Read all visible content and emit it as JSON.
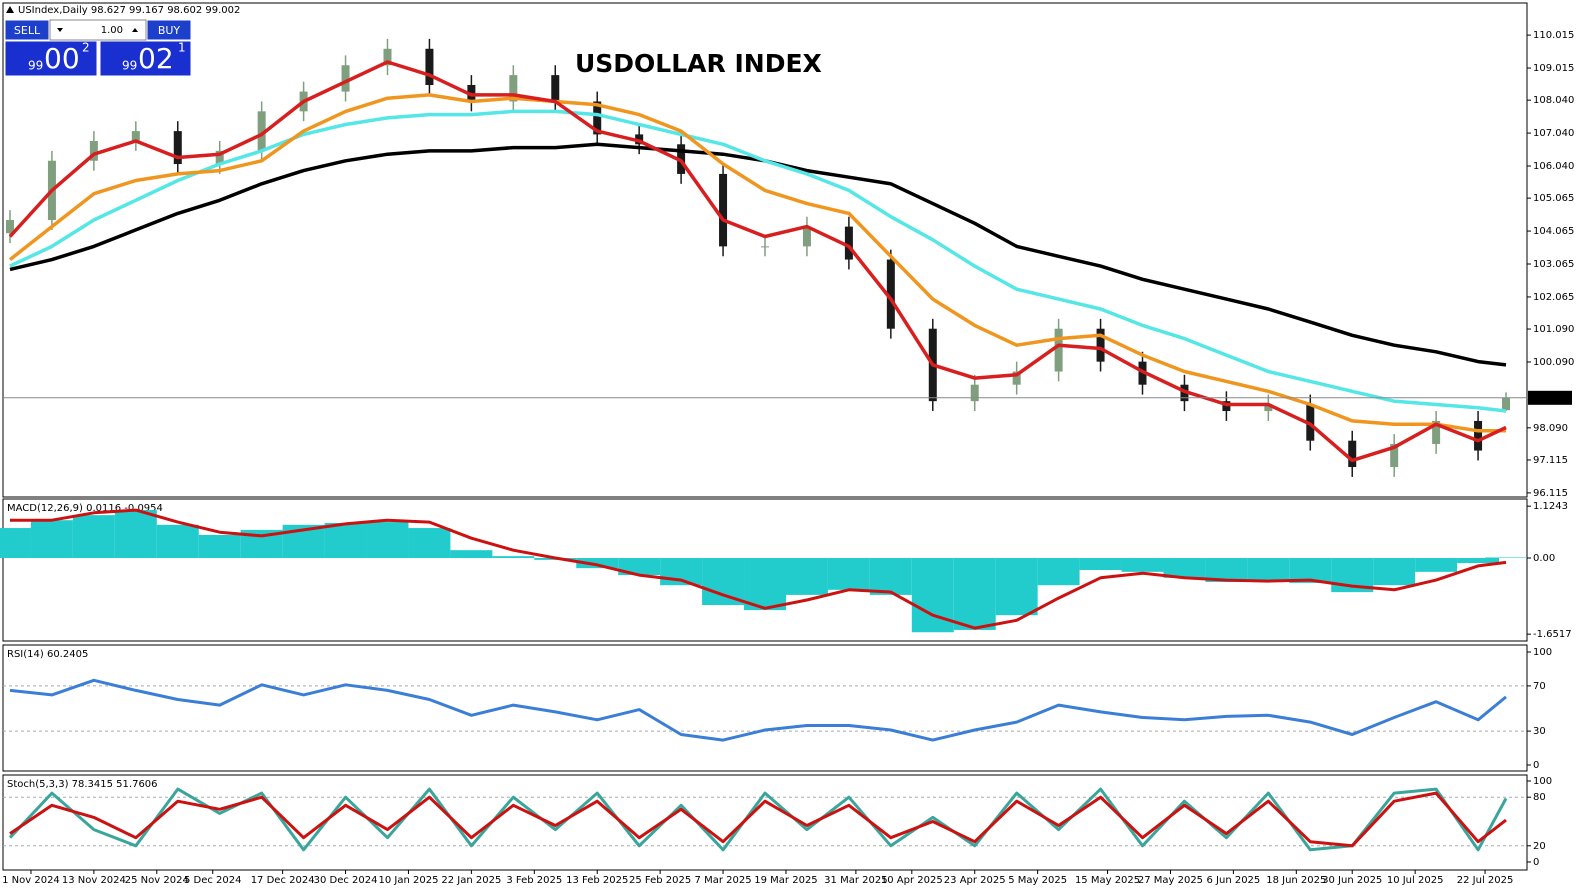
{
  "trade_panel": {
    "header": "USIndex,Daily  98.627 99.167 98.602 99.002",
    "sell": "SELL",
    "buy": "BUY",
    "lot": "1.00",
    "sell_price": {
      "small": "99",
      "big": "00",
      "sup": "2"
    },
    "buy_price": {
      "small": "99",
      "big": "02",
      "sup": "1"
    }
  },
  "chart_data": [
    {
      "type": "candlestick",
      "title": "USDOLLAR INDEX",
      "x": [
        0,
        6,
        12,
        18,
        24,
        30,
        36,
        42,
        48,
        54,
        60,
        66,
        72,
        78,
        84,
        90,
        96,
        102,
        108,
        114,
        120,
        126,
        132,
        138,
        144,
        150,
        156,
        162,
        168,
        174,
        180,
        186,
        192,
        198,
        204,
        210,
        214
      ],
      "open": [
        104.0,
        104.4,
        106.2,
        106.8,
        107.1,
        106.1,
        106.5,
        107.7,
        108.3,
        109.1,
        109.6,
        108.5,
        108.0,
        108.8,
        108.0,
        107.0,
        106.7,
        105.8,
        103.6,
        103.6,
        104.2,
        103.2,
        101.1,
        98.9,
        99.4,
        99.8,
        101.1,
        100.1,
        99.4,
        98.9,
        98.6,
        98.8,
        97.7,
        96.9,
        97.6,
        98.3,
        98.627
      ],
      "high": [
        104.7,
        106.5,
        107.1,
        107.4,
        107.4,
        106.8,
        108.0,
        108.6,
        109.4,
        109.9,
        109.9,
        108.8,
        109.1,
        109.1,
        108.3,
        107.3,
        107.0,
        106.1,
        103.9,
        104.5,
        104.5,
        103.5,
        101.4,
        99.7,
        100.1,
        101.4,
        101.4,
        100.4,
        99.7,
        99.2,
        99.1,
        99.1,
        98.0,
        97.9,
        98.6,
        98.6,
        99.167
      ],
      "low": [
        103.7,
        104.1,
        105.9,
        106.5,
        105.8,
        105.8,
        106.2,
        107.4,
        108.0,
        108.8,
        108.2,
        107.7,
        107.7,
        107.7,
        106.7,
        106.4,
        105.5,
        103.3,
        103.3,
        103.3,
        102.9,
        100.8,
        98.6,
        98.6,
        99.1,
        99.5,
        99.8,
        99.1,
        98.6,
        98.3,
        98.3,
        97.4,
        96.6,
        96.6,
        97.3,
        97.1,
        98.602
      ],
      "close": [
        104.4,
        106.2,
        106.8,
        107.1,
        106.1,
        106.5,
        107.7,
        108.3,
        109.1,
        109.6,
        108.5,
        108.0,
        108.8,
        108.0,
        107.0,
        106.7,
        105.8,
        103.6,
        103.6,
        104.2,
        103.2,
        101.1,
        98.9,
        99.4,
        99.8,
        101.1,
        100.1,
        99.4,
        98.9,
        98.6,
        98.8,
        97.7,
        96.9,
        97.6,
        98.3,
        97.4,
        99.002
      ],
      "up_color": "#7f9f7f",
      "down_color": "#1a1a1a",
      "series": [
        {
          "color": "#000000",
          "values": [
            102.9,
            103.2,
            103.6,
            104.1,
            104.6,
            105.0,
            105.5,
            105.9,
            106.2,
            106.4,
            106.5,
            106.5,
            106.6,
            106.6,
            106.7,
            106.6,
            106.5,
            106.4,
            106.2,
            105.9,
            105.7,
            105.5,
            104.9,
            104.3,
            103.6,
            103.3,
            103.0,
            102.6,
            102.3,
            102.0,
            101.7,
            101.3,
            100.9,
            100.6,
            100.4,
            100.1,
            100.0
          ]
        },
        {
          "color": "#55e6e6",
          "values": [
            103.0,
            103.6,
            104.4,
            105.0,
            105.6,
            106.1,
            106.5,
            107.0,
            107.3,
            107.5,
            107.6,
            107.6,
            107.7,
            107.7,
            107.6,
            107.3,
            107.0,
            106.7,
            106.2,
            105.8,
            105.3,
            104.5,
            103.8,
            103.0,
            102.3,
            102.0,
            101.7,
            101.2,
            100.8,
            100.3,
            99.8,
            99.5,
            99.2,
            98.9,
            98.8,
            98.7,
            98.6
          ]
        },
        {
          "color": "#f0961e",
          "values": [
            103.2,
            104.2,
            105.2,
            105.6,
            105.8,
            105.9,
            106.2,
            107.1,
            107.7,
            108.1,
            108.2,
            108.0,
            108.1,
            108.0,
            107.9,
            107.6,
            107.1,
            106.1,
            105.3,
            104.9,
            104.6,
            103.3,
            102.0,
            101.2,
            100.6,
            100.8,
            100.9,
            100.3,
            99.8,
            99.5,
            99.2,
            98.8,
            98.3,
            98.2,
            98.2,
            98.0,
            98.0
          ]
        },
        {
          "color": "#d81e1e",
          "values": [
            103.9,
            105.3,
            106.4,
            106.8,
            106.3,
            106.4,
            107.0,
            108.0,
            108.6,
            109.2,
            108.8,
            108.2,
            108.2,
            108.0,
            107.1,
            106.8,
            106.2,
            104.4,
            103.9,
            104.2,
            103.6,
            102.0,
            100.0,
            99.6,
            99.7,
            100.6,
            100.5,
            99.8,
            99.2,
            98.8,
            98.8,
            98.2,
            97.1,
            97.5,
            98.2,
            97.7,
            98.1
          ]
        }
      ],
      "current_price": 99.002,
      "xlim": [
        -1,
        217
      ],
      "xticks": [
        {
          "value": 3,
          "label": "1 Nov 2024"
        },
        {
          "value": 12,
          "label": "13 Nov 2024"
        },
        {
          "value": 21,
          "label": "25 Nov 2024"
        },
        {
          "value": 29,
          "label": "5 Dec 2024"
        },
        {
          "value": 39,
          "label": "17 Dec 2024"
        },
        {
          "value": 48,
          "label": "30 Dec 2024"
        },
        {
          "value": 57,
          "label": "10 Jan 2025"
        },
        {
          "value": 66,
          "label": "22 Jan 2025"
        },
        {
          "value": 75,
          "label": "3 Feb 2025"
        },
        {
          "value": 84,
          "label": "13 Feb 2025"
        },
        {
          "value": 93,
          "label": "25 Feb 2025"
        },
        {
          "value": 102,
          "label": "7 Mar 2025"
        },
        {
          "value": 111,
          "label": "19 Mar 2025"
        },
        {
          "value": 121,
          "label": "31 Mar 2025"
        },
        {
          "value": 129,
          "label": "10 Apr 2025"
        },
        {
          "value": 138,
          "label": "23 Apr 2025"
        },
        {
          "value": 147,
          "label": "5 May 2025"
        },
        {
          "value": 157,
          "label": "15 May 2025"
        },
        {
          "value": 166,
          "label": "27 May 2025"
        },
        {
          "value": 175,
          "label": "6 Jun 2025"
        },
        {
          "value": 184,
          "label": "18 Jun 2025"
        },
        {
          "value": 192,
          "label": "30 Jun 2025"
        },
        {
          "value": 201,
          "label": "10 Jul 2025"
        },
        {
          "value": 211,
          "label": "22 Jul 2025"
        }
      ],
      "ylim": [
        95.99,
        110.99
      ],
      "yticks": [
        110.015,
        109.015,
        {
          "value": 108.04,
          "label": "108.040"
        },
        {
          "value": 107.04,
          "label": "107.040"
        },
        {
          "value": 106.04,
          "label": "106.040"
        },
        105.065,
        104.065,
        103.065,
        102.065,
        {
          "value": 101.09,
          "label": "101.090"
        },
        {
          "value": 100.09,
          "label": "100.090"
        },
        {
          "value": 98.09,
          "label": "98.090"
        },
        97.115,
        96.115
      ]
    },
    {
      "type": "macd",
      "title": "MACD(12,26,9) 0.0116 -0.0954",
      "histogram": {
        "color": "#22cccc",
        "values": [
          0.65,
          0.82,
          0.93,
          1.04,
          0.72,
          0.5,
          0.61,
          0.72,
          0.76,
          0.78,
          0.65,
          0.17,
          0.04,
          -0.04,
          -0.22,
          -0.37,
          -0.59,
          -1.02,
          -1.13,
          -0.8,
          -0.69,
          -0.8,
          -1.61,
          -1.56,
          -1.24,
          -0.59,
          -0.26,
          -0.3,
          -0.43,
          -0.52,
          -0.48,
          -0.54,
          -0.74,
          -0.59,
          -0.3,
          -0.11,
          0.0116
        ]
      },
      "signal": {
        "color": "#cc1111",
        "values": [
          0.82,
          0.82,
          0.98,
          1.04,
          0.78,
          0.56,
          0.48,
          0.61,
          0.74,
          0.82,
          0.78,
          0.43,
          0.17,
          0.0,
          -0.15,
          -0.37,
          -0.48,
          -0.8,
          -1.09,
          -0.91,
          -0.69,
          -0.74,
          -1.24,
          -1.52,
          -1.35,
          -0.87,
          -0.43,
          -0.33,
          -0.43,
          -0.48,
          -0.5,
          -0.48,
          -0.61,
          -0.69,
          -0.48,
          -0.17,
          -0.0954
        ]
      },
      "ylim": [
        -1.8,
        1.28
      ],
      "yticks": [
        1.1243,
        {
          "value": 0,
          "label": "0.00"
        },
        -1.6517
      ]
    },
    {
      "type": "line",
      "title": "RSI(14) 60.2405",
      "series": [
        {
          "color": "#3a7fd5",
          "values": [
            66,
            62,
            75,
            66,
            58,
            53,
            71,
            62,
            71,
            66,
            58,
            44,
            53,
            47,
            40,
            49,
            27,
            22,
            31,
            35,
            35,
            31,
            22,
            31,
            38,
            53,
            47,
            42,
            40,
            43,
            44,
            38,
            27,
            42,
            56,
            40,
            60.2405
          ]
        }
      ],
      "levels": [
        30,
        70
      ],
      "ylim": [
        -5.3,
        106.2
      ],
      "yticks": [
        100,
        70,
        30,
        0
      ]
    },
    {
      "type": "line",
      "title": "Stoch(5,3,3) 78.3415 51.7606",
      "series": [
        {
          "color": "#3aa59a",
          "values": [
            30,
            85,
            40,
            20,
            90,
            60,
            85,
            15,
            80,
            30,
            90,
            20,
            80,
            40,
            85,
            20,
            70,
            15,
            85,
            40,
            80,
            20,
            55,
            20,
            85,
            40,
            90,
            20,
            75,
            30,
            85,
            15,
            20,
            85,
            90,
            15,
            78.3415
          ]
        },
        {
          "color": "#cc1111",
          "values": [
            35,
            70,
            55,
            30,
            75,
            65,
            80,
            30,
            70,
            40,
            80,
            30,
            70,
            45,
            75,
            30,
            65,
            25,
            75,
            45,
            70,
            30,
            50,
            25,
            75,
            45,
            80,
            30,
            70,
            35,
            75,
            25,
            20,
            75,
            85,
            25,
            51.7606
          ]
        }
      ],
      "levels": [
        20,
        80
      ],
      "ylim": [
        -9.9,
        107.4
      ],
      "yticks": [
        100,
        80,
        20,
        0
      ]
    }
  ]
}
